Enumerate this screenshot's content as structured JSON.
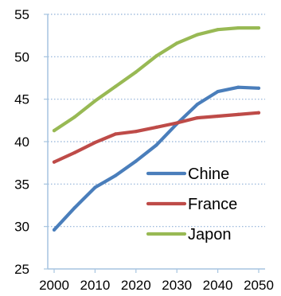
{
  "chart_data": {
    "type": "line",
    "title": "",
    "xlabel": "",
    "ylabel": "",
    "xlim": [
      2000,
      2050
    ],
    "ylim": [
      25,
      55
    ],
    "xticks": [
      "2000",
      "2010",
      "2020",
      "2030",
      "2040",
      "2050"
    ],
    "yticks": [
      "25",
      "30",
      "35",
      "40",
      "45",
      "50",
      "55"
    ],
    "grid": "horizontal dotted",
    "legend_position": "bottom-right",
    "x": [
      2000,
      2005,
      2010,
      2015,
      2020,
      2025,
      2030,
      2035,
      2040,
      2045,
      2050
    ],
    "series": [
      {
        "name": "Chine",
        "color": "#4a7ebb",
        "values": [
          29.6,
          32.2,
          34.6,
          36.0,
          37.7,
          39.6,
          42.1,
          44.4,
          45.9,
          46.4,
          46.3
        ]
      },
      {
        "name": "France",
        "color": "#be4b48",
        "values": [
          37.6,
          38.7,
          39.9,
          40.9,
          41.2,
          41.7,
          42.2,
          42.8,
          43.0,
          43.2,
          43.4
        ]
      },
      {
        "name": "Japon",
        "color": "#98b954",
        "values": [
          41.3,
          42.9,
          44.8,
          46.5,
          48.2,
          50.1,
          51.6,
          52.6,
          53.2,
          53.4,
          53.4
        ]
      }
    ]
  }
}
